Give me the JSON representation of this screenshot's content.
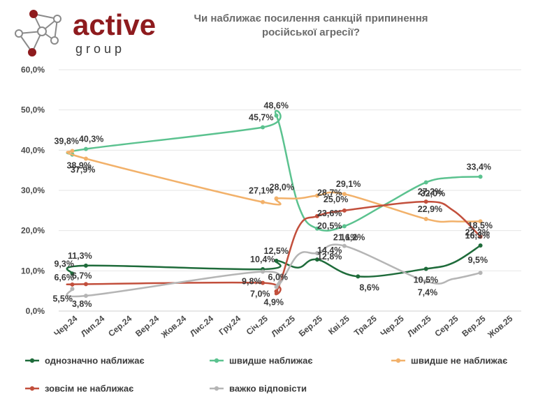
{
  "logo": {
    "word": "active",
    "sub": "g r o u p",
    "color": "#8e1b1e"
  },
  "chart_data": {
    "type": "line",
    "title_lines": [
      "Чи наближає посилення санкцій припинення",
      "російської агресії?"
    ],
    "categories": [
      "Чер.24",
      "Лип.24",
      "Сер.24",
      "Вер.24",
      "Жов.24",
      "Лис.24",
      "Гру.24",
      "Січ.25",
      "Лют.25",
      "Бер.25",
      "Кві.25",
      "Тра.25",
      "Чер.25",
      "Лип.25",
      "Сер.25",
      "Вер.25",
      "Жов.25"
    ],
    "ylim": [
      0,
      60
    ],
    "yticks": [
      "0,0%",
      "10,0%",
      "20,0%",
      "30,0%",
      "40,0%",
      "50,0%",
      "60,0%"
    ],
    "grid": true,
    "legend_position": "bottom",
    "series": [
      {
        "name": "однозначно наближає",
        "color": "#1e6b3a",
        "points": [
          [
            0,
            9.3
          ],
          [
            0.5,
            11.3
          ],
          [
            7,
            10.4
          ],
          [
            7.5,
            12.5
          ],
          [
            8.3,
            10.8
          ],
          [
            9,
            12.8
          ],
          [
            10.5,
            8.6
          ],
          [
            13,
            10.5
          ],
          [
            14,
            12.0
          ],
          [
            15,
            16.3
          ]
        ],
        "labels": [
          [
            "9,3%",
            0
          ],
          [
            "11,3%",
            1
          ],
          [
            "10,4%",
            2
          ],
          [
            "12,5%",
            3
          ],
          [
            "12,8%",
            5
          ],
          [
            "8,6%",
            6
          ],
          [
            "10,5%",
            7
          ],
          [
            "16,3%",
            9
          ]
        ]
      },
      {
        "name": "швидше наближає",
        "color": "#5bc28f",
        "points": [
          [
            0,
            38.9
          ],
          [
            0.5,
            40.3
          ],
          [
            7,
            45.7
          ],
          [
            7.5,
            48.6
          ],
          [
            8.3,
            26.5
          ],
          [
            9,
            20.5
          ],
          [
            10,
            21.1
          ],
          [
            11.5,
            26.5
          ],
          [
            13,
            32.0
          ],
          [
            14,
            33.2
          ],
          [
            15,
            33.4
          ]
        ],
        "labels": [
          [
            "38,9%",
            0
          ],
          [
            "40,3%",
            1
          ],
          [
            "45,7%",
            2
          ],
          [
            "48,6%",
            3
          ],
          [
            "20,5%",
            5
          ],
          [
            "21,1%",
            6
          ],
          [
            "32,0%",
            8
          ],
          [
            "33,4%",
            10
          ]
        ]
      },
      {
        "name": "швидше не наближає",
        "color": "#f2b16a",
        "points": [
          [
            0,
            39.8
          ],
          [
            0.5,
            37.9
          ],
          [
            7,
            27.1
          ],
          [
            7.5,
            28.0
          ],
          [
            8.3,
            28.0
          ],
          [
            9,
            28.7
          ],
          [
            10,
            29.1
          ],
          [
            13,
            22.9
          ],
          [
            14,
            22.3
          ],
          [
            15,
            22.3
          ]
        ],
        "labels": [
          [
            "39,8%",
            0
          ],
          [
            "37,9%",
            1
          ],
          [
            "27,1%",
            2
          ],
          [
            "28,0%",
            3
          ],
          [
            "28,7%",
            5
          ],
          [
            "29,1%",
            6
          ],
          [
            "22,9%",
            7
          ],
          [
            "22,3%",
            9
          ]
        ]
      },
      {
        "name": "зовсім не наближає",
        "color": "#c24f3c",
        "points": [
          [
            0,
            6.6
          ],
          [
            0.5,
            6.7
          ],
          [
            7,
            7.0
          ],
          [
            7.5,
            4.9
          ],
          [
            8.3,
            20.7
          ],
          [
            9,
            23.6
          ],
          [
            10,
            25.0
          ],
          [
            13,
            27.2
          ],
          [
            14,
            25.0
          ],
          [
            15,
            18.5
          ]
        ],
        "labels": [
          [
            "6,6%",
            0
          ],
          [
            "6,7%",
            1
          ],
          [
            "7,0%",
            2
          ],
          [
            "4,9%",
            3
          ],
          [
            "23,6%",
            5
          ],
          [
            "25,0%",
            6
          ],
          [
            "27,2%",
            7
          ],
          [
            "18,5%",
            9
          ]
        ]
      },
      {
        "name": "важко відповісти",
        "color": "#b5b5b5",
        "points": [
          [
            0,
            5.5
          ],
          [
            0.5,
            3.8
          ],
          [
            7,
            9.8
          ],
          [
            7.5,
            6.0
          ],
          [
            8.3,
            14.0
          ],
          [
            9,
            14.4
          ],
          [
            10,
            16.2
          ],
          [
            13,
            7.4
          ],
          [
            14,
            8.0
          ],
          [
            15,
            9.5
          ]
        ],
        "labels": [
          [
            "5,5%",
            0
          ],
          [
            "3,8%",
            1
          ],
          [
            "9,8%",
            2
          ],
          [
            "6,0%",
            3
          ],
          [
            "14,4%",
            5
          ],
          [
            "16,2%",
            6
          ],
          [
            "7,4%",
            7
          ],
          [
            "9,5%",
            9
          ]
        ]
      }
    ]
  }
}
